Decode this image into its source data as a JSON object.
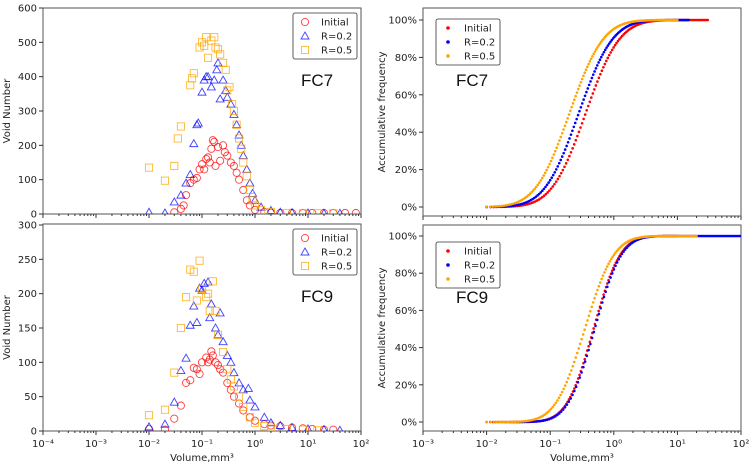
{
  "colors": {
    "Initial": "#ff0000",
    "R=0.2": "#0000ff",
    "R=0.5": "#ffa500"
  },
  "chart_data": [
    {
      "type": "scatter",
      "panel_label": "FC7",
      "xlabel": "Volume,mm³",
      "ylabel": "Void Number",
      "xscale": "log",
      "xlim": [
        0.0001,
        100
      ],
      "ylim": [
        0,
        600
      ],
      "yticks": [
        "0",
        "100",
        "200",
        "300",
        "400",
        "500",
        "600"
      ],
      "xticks": [],
      "legend": "top-right",
      "markers": [
        "circle",
        "triangle",
        "square"
      ],
      "series": [
        {
          "name": "Initial",
          "points": [
            [
              0.03,
              5
            ],
            [
              0.04,
              15
            ],
            [
              0.045,
              25
            ],
            [
              0.05,
              55
            ],
            [
              0.06,
              90
            ],
            [
              0.07,
              100
            ],
            [
              0.08,
              105
            ],
            [
              0.09,
              130
            ],
            [
              0.1,
              145
            ],
            [
              0.11,
              130
            ],
            [
              0.12,
              160
            ],
            [
              0.13,
              165
            ],
            [
              0.14,
              150
            ],
            [
              0.15,
              190
            ],
            [
              0.16,
              215
            ],
            [
              0.17,
              210
            ],
            [
              0.18,
              140
            ],
            [
              0.2,
              195
            ],
            [
              0.22,
              155
            ],
            [
              0.25,
              200
            ],
            [
              0.27,
              180
            ],
            [
              0.3,
              170
            ],
            [
              0.35,
              150
            ],
            [
              0.4,
              140
            ],
            [
              0.45,
              120
            ],
            [
              0.5,
              100
            ],
            [
              0.6,
              70
            ],
            [
              0.7,
              40
            ],
            [
              0.8,
              25
            ],
            [
              1,
              12
            ],
            [
              1.5,
              6
            ],
            [
              2,
              4
            ],
            [
              3,
              3
            ],
            [
              5,
              3
            ],
            [
              8,
              3
            ],
            [
              12,
              3
            ],
            [
              20,
              3
            ],
            [
              30,
              3
            ],
            [
              50,
              3
            ],
            [
              80,
              3
            ]
          ]
        },
        {
          "name": "R=0.2",
          "points": [
            [
              0.01,
              5
            ],
            [
              0.02,
              3
            ],
            [
              0.03,
              35
            ],
            [
              0.04,
              55
            ],
            [
              0.05,
              90
            ],
            [
              0.06,
              115
            ],
            [
              0.07,
              205
            ],
            [
              0.08,
              260
            ],
            [
              0.085,
              265
            ],
            [
              0.1,
              355
            ],
            [
              0.11,
              390
            ],
            [
              0.12,
              400
            ],
            [
              0.13,
              400
            ],
            [
              0.15,
              370
            ],
            [
              0.17,
              390
            ],
            [
              0.19,
              420
            ],
            [
              0.2,
              440
            ],
            [
              0.22,
              335
            ],
            [
              0.25,
              390
            ],
            [
              0.28,
              360
            ],
            [
              0.3,
              340
            ],
            [
              0.35,
              320
            ],
            [
              0.4,
              290
            ],
            [
              0.45,
              260
            ],
            [
              0.5,
              230
            ],
            [
              0.55,
              200
            ],
            [
              0.6,
              170
            ],
            [
              0.7,
              130
            ],
            [
              0.8,
              90
            ],
            [
              0.9,
              60
            ],
            [
              1,
              40
            ],
            [
              1.3,
              20
            ],
            [
              2,
              10
            ],
            [
              3,
              5
            ],
            [
              5,
              4
            ],
            [
              10,
              3
            ],
            [
              20,
              2
            ],
            [
              40,
              2
            ]
          ]
        },
        {
          "name": "R=0.5",
          "points": [
            [
              0.01,
              135
            ],
            [
              0.02,
              97
            ],
            [
              0.03,
              140
            ],
            [
              0.035,
              220
            ],
            [
              0.04,
              255
            ],
            [
              0.06,
              375
            ],
            [
              0.065,
              395
            ],
            [
              0.07,
              410
            ],
            [
              0.09,
              485
            ],
            [
              0.1,
              500
            ],
            [
              0.11,
              490
            ],
            [
              0.12,
              515
            ],
            [
              0.13,
              455
            ],
            [
              0.15,
              505
            ],
            [
              0.17,
              515
            ],
            [
              0.18,
              485
            ],
            [
              0.2,
              480
            ],
            [
              0.22,
              465
            ],
            [
              0.25,
              440
            ],
            [
              0.28,
              420
            ],
            [
              0.3,
              360
            ],
            [
              0.33,
              370
            ],
            [
              0.37,
              320
            ],
            [
              0.4,
              300
            ],
            [
              0.45,
              260
            ],
            [
              0.5,
              220
            ],
            [
              0.55,
              190
            ],
            [
              0.6,
              150
            ],
            [
              0.7,
              110
            ],
            [
              0.8,
              70
            ],
            [
              0.9,
              40
            ],
            [
              1,
              25
            ],
            [
              1.3,
              12
            ],
            [
              2,
              6
            ],
            [
              4,
              3
            ],
            [
              8,
              2
            ],
            [
              15,
              2
            ],
            [
              30,
              2
            ]
          ]
        }
      ]
    },
    {
      "type": "scatter",
      "panel_label": "FC7",
      "xlabel": "",
      "ylabel": "Accumulative frequency",
      "xscale": "log",
      "xlim": [
        0.001,
        100
      ],
      "ylim": [
        0,
        100
      ],
      "yticks": [
        "0%",
        "20%",
        "40%",
        "60%",
        "80%",
        "100%"
      ],
      "xticks": [],
      "legend": "top-left",
      "markers": [
        "dot",
        "dot",
        "dot"
      ],
      "series": [
        {
          "name": "Initial",
          "distribution": "cumulative lognormal",
          "median": 0.36,
          "log10_sigma": 0.42,
          "x_range": [
            0.01,
            30
          ]
        },
        {
          "name": "R=0.2",
          "distribution": "cumulative lognormal",
          "median": 0.28,
          "log10_sigma": 0.42,
          "x_range": [
            0.01,
            15
          ]
        },
        {
          "name": "R=0.5",
          "distribution": "cumulative lognormal",
          "median": 0.2,
          "log10_sigma": 0.42,
          "x_range": [
            0.01,
            10
          ]
        }
      ]
    },
    {
      "type": "scatter",
      "panel_label": "FC9",
      "xlabel": "Volume,mm³",
      "ylabel": "Void Number",
      "xscale": "log",
      "xlim": [
        0.0001,
        100
      ],
      "ylim": [
        0,
        300
      ],
      "yticks": [
        "0",
        "50",
        "100",
        "150",
        "200",
        "250",
        "300"
      ],
      "xticks": [
        "10⁻⁴",
        "10⁻³",
        "10⁻²",
        "10⁻¹",
        "10⁰",
        "10¹",
        "10²"
      ],
      "legend": "top-right",
      "markers": [
        "circle",
        "triangle",
        "square"
      ],
      "series": [
        {
          "name": "Initial",
          "points": [
            [
              0.01,
              3
            ],
            [
              0.02,
              2
            ],
            [
              0.03,
              18
            ],
            [
              0.04,
              37
            ],
            [
              0.05,
              70
            ],
            [
              0.06,
              74
            ],
            [
              0.07,
              92
            ],
            [
              0.08,
              90
            ],
            [
              0.09,
              83
            ],
            [
              0.1,
              100
            ],
            [
              0.12,
              107
            ],
            [
              0.13,
              100
            ],
            [
              0.14,
              104
            ],
            [
              0.15,
              116
            ],
            [
              0.16,
              110
            ],
            [
              0.18,
              100
            ],
            [
              0.2,
              96
            ],
            [
              0.22,
              90
            ],
            [
              0.25,
              85
            ],
            [
              0.3,
              70
            ],
            [
              0.35,
              60
            ],
            [
              0.4,
              50
            ],
            [
              0.5,
              40
            ],
            [
              0.6,
              30
            ],
            [
              0.8,
              20
            ],
            [
              1,
              15
            ],
            [
              1.5,
              10
            ],
            [
              2,
              8
            ],
            [
              3,
              7
            ],
            [
              5,
              5
            ],
            [
              8,
              4
            ],
            [
              12,
              3
            ],
            [
              20,
              2
            ],
            [
              30,
              2
            ]
          ]
        },
        {
          "name": "R=0.2",
          "points": [
            [
              0.01,
              6
            ],
            [
              0.02,
              10
            ],
            [
              0.03,
              42
            ],
            [
              0.04,
              88
            ],
            [
              0.05,
              106
            ],
            [
              0.06,
              154
            ],
            [
              0.07,
              182
            ],
            [
              0.08,
              158
            ],
            [
              0.09,
              208
            ],
            [
              0.1,
              205
            ],
            [
              0.11,
              215
            ],
            [
              0.13,
              217
            ],
            [
              0.14,
              165
            ],
            [
              0.15,
              185
            ],
            [
              0.18,
              150
            ],
            [
              0.2,
              140
            ],
            [
              0.22,
              172
            ],
            [
              0.25,
              130
            ],
            [
              0.3,
              110
            ],
            [
              0.35,
              100
            ],
            [
              0.4,
              85
            ],
            [
              0.5,
              70
            ],
            [
              0.6,
              60
            ],
            [
              0.75,
              62
            ],
            [
              0.8,
              45
            ],
            [
              1,
              35
            ],
            [
              1.5,
              20
            ],
            [
              2,
              12
            ],
            [
              3,
              8
            ],
            [
              5,
              5
            ],
            [
              10,
              3
            ],
            [
              20,
              2
            ],
            [
              40,
              1
            ]
          ]
        },
        {
          "name": "R=0.5",
          "points": [
            [
              0.01,
              23
            ],
            [
              0.02,
              31
            ],
            [
              0.03,
              85
            ],
            [
              0.04,
              150
            ],
            [
              0.05,
              195
            ],
            [
              0.06,
              235
            ],
            [
              0.07,
              232
            ],
            [
              0.08,
              190
            ],
            [
              0.09,
              248
            ],
            [
              0.1,
              207
            ],
            [
              0.12,
              195
            ],
            [
              0.13,
              200
            ],
            [
              0.14,
              175
            ],
            [
              0.16,
              218
            ],
            [
              0.18,
              175
            ],
            [
              0.2,
              140
            ],
            [
              0.25,
              115
            ],
            [
              0.3,
              90
            ],
            [
              0.35,
              75
            ],
            [
              0.4,
              65
            ],
            [
              0.5,
              50
            ],
            [
              0.6,
              35
            ],
            [
              0.8,
              20
            ],
            [
              1,
              12
            ],
            [
              1.5,
              7
            ],
            [
              2,
              5
            ],
            [
              4,
              3
            ],
            [
              8,
              2
            ],
            [
              15,
              1
            ]
          ]
        }
      ]
    },
    {
      "type": "scatter",
      "panel_label": "FC9",
      "xlabel": "Volume,mm³",
      "ylabel": "Accumulative frequency",
      "xscale": "log",
      "xlim": [
        0.001,
        100
      ],
      "ylim": [
        0,
        100
      ],
      "yticks": [
        "0%",
        "20%",
        "40%",
        "60%",
        "80%",
        "100%"
      ],
      "xticks": [
        "10⁻³",
        "10⁻²",
        "10⁻¹",
        "10⁰",
        "10¹",
        "10²"
      ],
      "legend": "top-left",
      "markers": [
        "dot",
        "dot",
        "dot"
      ],
      "series": [
        {
          "name": "Initial",
          "distribution": "cumulative lognormal",
          "median": 0.48,
          "log10_sigma": 0.33,
          "x_range": [
            0.01,
            10
          ]
        },
        {
          "name": "R=0.2",
          "distribution": "cumulative lognormal",
          "median": 0.5,
          "log10_sigma": 0.33,
          "x_range": [
            0.02,
            100
          ]
        },
        {
          "name": "R=0.5",
          "distribution": "cumulative lognormal",
          "median": 0.35,
          "log10_sigma": 0.36,
          "x_range": [
            0.01,
            20
          ]
        }
      ]
    }
  ]
}
